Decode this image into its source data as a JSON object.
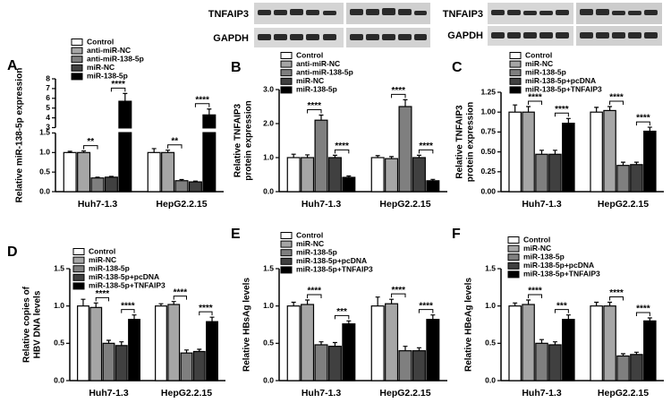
{
  "blots": [
    {
      "rows": [
        "TNFAIP3",
        "GAPDH"
      ]
    },
    {
      "rows": [
        "TNFAIP3",
        "GAPDH"
      ]
    }
  ],
  "chart_data": [
    {
      "type": "bar",
      "label": "A",
      "ylabel": [
        "Relative miR-138-5p expression"
      ],
      "categories": [
        "Huh7-1.3",
        "HepG2.2.15"
      ],
      "series": [
        {
          "name": "Control",
          "color": "#ffffff",
          "values": [
            1.0,
            1.0
          ],
          "errors": [
            0.03,
            0.1
          ]
        },
        {
          "name": "anti-miR-NC",
          "color": "#a6a6a6",
          "values": [
            1.0,
            1.0
          ],
          "errors": [
            0.04,
            0.06
          ]
        },
        {
          "name": "anti-miR-138-5p",
          "color": "#7f7f7f",
          "values": [
            0.35,
            0.28
          ],
          "errors": [
            0.02,
            0.03
          ]
        },
        {
          "name": "miR-NC",
          "color": "#404040",
          "values": [
            0.37,
            0.25
          ],
          "errors": [
            0.02,
            0.02
          ]
        },
        {
          "name": "miR-138-5p",
          "color": "#000000",
          "values": [
            5.7,
            4.3
          ],
          "errors": [
            0.8,
            0.6
          ]
        }
      ],
      "ylim": [
        0,
        8
      ],
      "ybreak": [
        1.5,
        3
      ],
      "yticks": [
        {
          "value": 0,
          "label": "0.0"
        },
        0.5,
        {
          "value": 1,
          "label": "1.0"
        },
        1.5,
        3,
        4,
        5,
        6,
        7,
        8
      ],
      "annotations": [
        "**",
        "****",
        "**",
        "****"
      ]
    },
    {
      "type": "bar",
      "label": "B",
      "ylabel": [
        "Relative TNFAIP3",
        "protein expression"
      ],
      "categories": [
        "Huh7-1.3",
        "HepG2.2.15"
      ],
      "series": [
        {
          "name": "Control",
          "color": "#ffffff",
          "values": [
            1.0,
            1.0
          ],
          "errors": [
            0.1,
            0.06
          ]
        },
        {
          "name": "anti-miR-NC",
          "color": "#a6a6a6",
          "values": [
            1.0,
            0.97
          ],
          "errors": [
            0.08,
            0.06
          ]
        },
        {
          "name": "anti-miR-138-5p",
          "color": "#7f7f7f",
          "values": [
            2.1,
            2.5
          ],
          "errors": [
            0.15,
            0.2
          ]
        },
        {
          "name": "miR-NC",
          "color": "#404040",
          "values": [
            1.0,
            1.0
          ],
          "errors": [
            0.07,
            0.07
          ]
        },
        {
          "name": "miR-138-5p",
          "color": "#000000",
          "values": [
            0.42,
            0.32
          ],
          "errors": [
            0.04,
            0.04
          ]
        }
      ],
      "ylim": [
        0,
        3
      ],
      "yticks": [
        {
          "value": 0,
          "label": "0.0"
        },
        {
          "value": 1,
          "label": "1.0"
        },
        {
          "value": 2,
          "label": "2.0"
        },
        {
          "value": 3,
          "label": "3.0"
        }
      ],
      "annotations": [
        "****",
        "****",
        "****",
        "****"
      ]
    },
    {
      "type": "bar",
      "label": "C",
      "ylabel": [
        "Relative TNFAIP3",
        "protein expression"
      ],
      "categories": [
        "Huh7-1.3",
        "HepG2.2.15"
      ],
      "series": [
        {
          "name": "Control",
          "color": "#ffffff",
          "values": [
            1.0,
            1.0
          ],
          "errors": [
            0.09,
            0.06
          ]
        },
        {
          "name": "miR-NC",
          "color": "#a6a6a6",
          "values": [
            1.0,
            1.02
          ],
          "errors": [
            0.07,
            0.05
          ]
        },
        {
          "name": "miR-138-5p",
          "color": "#7f7f7f",
          "values": [
            0.47,
            0.33
          ],
          "errors": [
            0.05,
            0.04
          ]
        },
        {
          "name": "miR-138-5p+pcDNA",
          "color": "#404040",
          "values": [
            0.47,
            0.34
          ],
          "errors": [
            0.05,
            0.03
          ]
        },
        {
          "name": "miR-138-5p+TNFAIP3",
          "color": "#000000",
          "values": [
            0.86,
            0.76
          ],
          "errors": [
            0.06,
            0.05
          ]
        }
      ],
      "ylim": [
        0,
        1.25
      ],
      "yticks": [
        {
          "value": 0,
          "label": "0.00"
        },
        0.25,
        {
          "value": 0.5,
          "label": "0.50"
        },
        0.75,
        {
          "value": 1,
          "label": "1.00"
        },
        1.25
      ],
      "annotations": [
        "****",
        "****",
        "****",
        "****"
      ]
    },
    {
      "type": "bar",
      "label": "D",
      "ylabel": [
        "Relative copies of",
        "HBV DNA levels"
      ],
      "categories": [
        "Huh7-1.3",
        "HepG2.2.15"
      ],
      "series": [
        {
          "name": "Control",
          "color": "#ffffff",
          "values": [
            1.0,
            1.0
          ],
          "errors": [
            0.09,
            0.03
          ]
        },
        {
          "name": "miR-NC",
          "color": "#a6a6a6",
          "values": [
            0.98,
            1.02
          ],
          "errors": [
            0.06,
            0.04
          ]
        },
        {
          "name": "miR-138-5p",
          "color": "#7f7f7f",
          "values": [
            0.5,
            0.37
          ],
          "errors": [
            0.04,
            0.04
          ]
        },
        {
          "name": "miR-138-5p+pcDNA",
          "color": "#404040",
          "values": [
            0.47,
            0.39
          ],
          "errors": [
            0.05,
            0.03
          ]
        },
        {
          "name": "miR-138-5p+TNFAIP3",
          "color": "#000000",
          "values": [
            0.82,
            0.79
          ],
          "errors": [
            0.06,
            0.06
          ]
        }
      ],
      "ylim": [
        0,
        1.5
      ],
      "yticks": [
        {
          "value": 0,
          "label": "0.0"
        },
        0.5,
        {
          "value": 1,
          "label": "1.0"
        },
        1.5
      ],
      "annotations": [
        "****",
        "****",
        "****",
        "****"
      ]
    },
    {
      "type": "bar",
      "label": "E",
      "ylabel": [
        "Relative HBsAg levels"
      ],
      "categories": [
        "Huh7-1.3",
        "HepG2.2.15"
      ],
      "series": [
        {
          "name": "Control",
          "color": "#ffffff",
          "values": [
            1.0,
            1.0
          ],
          "errors": [
            0.05,
            0.12
          ]
        },
        {
          "name": "miR-NC",
          "color": "#a6a6a6",
          "values": [
            1.02,
            1.03
          ],
          "errors": [
            0.06,
            0.06
          ]
        },
        {
          "name": "miR-138-5p",
          "color": "#7f7f7f",
          "values": [
            0.48,
            0.4
          ],
          "errors": [
            0.04,
            0.06
          ]
        },
        {
          "name": "miR-138-5p+pcDNA",
          "color": "#404040",
          "values": [
            0.46,
            0.4
          ],
          "errors": [
            0.05,
            0.04
          ]
        },
        {
          "name": "miR-138-5p+TNFAIP3",
          "color": "#000000",
          "values": [
            0.76,
            0.82
          ],
          "errors": [
            0.04,
            0.06
          ]
        }
      ],
      "ylim": [
        0,
        1.5
      ],
      "yticks": [
        {
          "value": 0,
          "label": "0.0"
        },
        0.5,
        {
          "value": 1,
          "label": "1.0"
        },
        1.5
      ],
      "annotations": [
        "****",
        "***",
        "****",
        "****"
      ]
    },
    {
      "type": "bar",
      "label": "F",
      "ylabel": [
        "Relative HBeAg levels"
      ],
      "categories": [
        "Huh7-1.3",
        "HepG2.2.15"
      ],
      "series": [
        {
          "name": "Control",
          "color": "#ffffff",
          "values": [
            1.0,
            1.0
          ],
          "errors": [
            0.04,
            0.05
          ]
        },
        {
          "name": "miR-NC",
          "color": "#a6a6a6",
          "values": [
            1.02,
            1.0
          ],
          "errors": [
            0.06,
            0.05
          ]
        },
        {
          "name": "miR-138-5p",
          "color": "#7f7f7f",
          "values": [
            0.5,
            0.33
          ],
          "errors": [
            0.05,
            0.03
          ]
        },
        {
          "name": "miR-138-5p+pcDNA",
          "color": "#404040",
          "values": [
            0.48,
            0.35
          ],
          "errors": [
            0.04,
            0.03
          ]
        },
        {
          "name": "miR-138-5p+TNFAIP3",
          "color": "#000000",
          "values": [
            0.82,
            0.8
          ],
          "errors": [
            0.06,
            0.04
          ]
        }
      ],
      "ylim": [
        0,
        1.5
      ],
      "yticks": [
        {
          "value": 0,
          "label": "0.0"
        },
        0.5,
        {
          "value": 1,
          "label": "1.0"
        },
        1.5
      ],
      "annotations": [
        "****",
        "***",
        "****",
        "****"
      ]
    }
  ]
}
